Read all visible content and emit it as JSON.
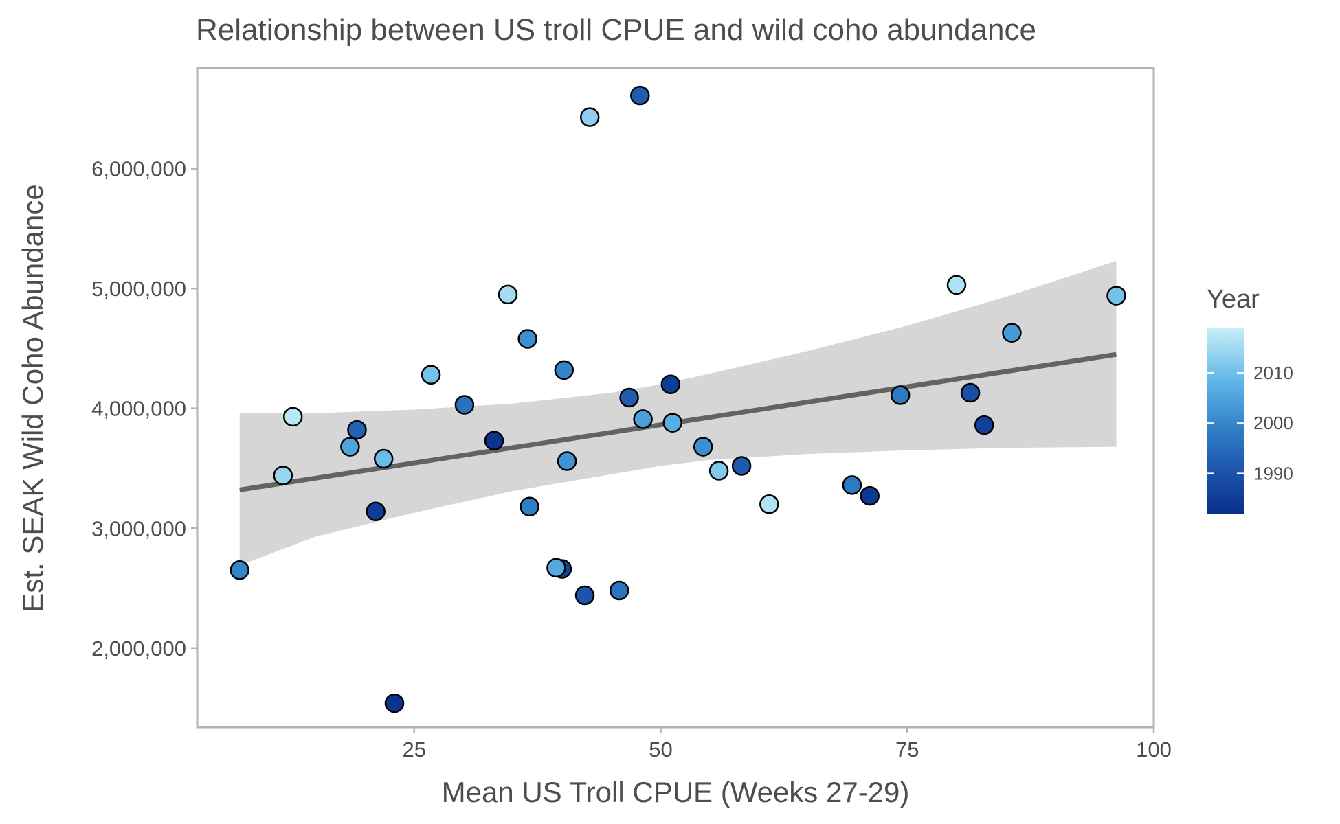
{
  "chart_data": {
    "type": "scatter",
    "title": "Relationship between US troll CPUE and wild coho abundance",
    "xlabel": "Mean US Troll CPUE (Weeks 27-29)",
    "ylabel": "Est. SEAK Wild Coho Abundance",
    "xlim": [
      3,
      100
    ],
    "ylim": [
      1340000,
      6840000
    ],
    "x_ticks": [
      25,
      50,
      75,
      100
    ],
    "x_tick_labels": [
      "25",
      "50",
      "75",
      "100"
    ],
    "y_ticks": [
      2000000,
      3000000,
      4000000,
      5000000,
      6000000
    ],
    "y_tick_labels": [
      "2,000,000",
      "3,000,000",
      "4,000,000",
      "5,000,000",
      "6,000,000"
    ],
    "grid": false,
    "legend": {
      "title": "Year",
      "position": "right",
      "type": "colorbar",
      "range": [
        1982,
        2019
      ],
      "ticks": [
        1990,
        2000,
        2010
      ],
      "tick_labels": [
        "1990",
        "2000",
        "2010"
      ],
      "color_low": "#08308a",
      "color_high": "#c6f0f8"
    },
    "colors": {
      "point_stroke": "#000000",
      "trend_line": "#636363",
      "confidence_band": "#d6d6d6",
      "panel_border": "#b3b3b3",
      "text": "#4d4d4d"
    },
    "trend": {
      "x": [
        7.3,
        96.2
      ],
      "y": [
        3320000,
        4450000
      ],
      "band_x": [
        7.3,
        15,
        25,
        35,
        45,
        50,
        55,
        65,
        75,
        85,
        96.2
      ],
      "band_lower": [
        2690000,
        2930000,
        3130000,
        3310000,
        3450000,
        3520000,
        3570000,
        3620000,
        3650000,
        3670000,
        3680000
      ],
      "band_upper": [
        3960000,
        3960000,
        3990000,
        4040000,
        4130000,
        4200000,
        4290000,
        4480000,
        4690000,
        4930000,
        5230000
      ]
    },
    "points": [
      {
        "x": 7.3,
        "y": 2650000,
        "year": 2001
      },
      {
        "x": 11.7,
        "y": 3440000,
        "year": 2015
      },
      {
        "x": 12.7,
        "y": 3930000,
        "year": 2018
      },
      {
        "x": 18.5,
        "y": 3680000,
        "year": 2007
      },
      {
        "x": 19.2,
        "y": 3820000,
        "year": 1994
      },
      {
        "x": 21.1,
        "y": 3140000,
        "year": 1985
      },
      {
        "x": 21.9,
        "y": 3580000,
        "year": 2011
      },
      {
        "x": 23.0,
        "y": 1540000,
        "year": 1983
      },
      {
        "x": 26.7,
        "y": 4280000,
        "year": 2012
      },
      {
        "x": 30.1,
        "y": 4030000,
        "year": 1997
      },
      {
        "x": 33.1,
        "y": 3730000,
        "year": 1983
      },
      {
        "x": 34.5,
        "y": 4950000,
        "year": 2016
      },
      {
        "x": 36.5,
        "y": 4580000,
        "year": 2003
      },
      {
        "x": 36.7,
        "y": 3180000,
        "year": 2000
      },
      {
        "x": 40.0,
        "y": 2660000,
        "year": 1987
      },
      {
        "x": 39.4,
        "y": 2670000,
        "year": 2008
      },
      {
        "x": 40.2,
        "y": 4320000,
        "year": 2001
      },
      {
        "x": 40.5,
        "y": 3560000,
        "year": 2004
      },
      {
        "x": 42.3,
        "y": 2440000,
        "year": 1991
      },
      {
        "x": 42.8,
        "y": 6430000,
        "year": 2014
      },
      {
        "x": 45.8,
        "y": 2480000,
        "year": 1998
      },
      {
        "x": 46.8,
        "y": 4090000,
        "year": 1993
      },
      {
        "x": 47.9,
        "y": 6610000,
        "year": 1993
      },
      {
        "x": 48.2,
        "y": 3910000,
        "year": 2006
      },
      {
        "x": 51.0,
        "y": 4200000,
        "year": 1985
      },
      {
        "x": 51.2,
        "y": 3880000,
        "year": 2009
      },
      {
        "x": 54.3,
        "y": 3680000,
        "year": 2003
      },
      {
        "x": 55.9,
        "y": 3480000,
        "year": 2013
      },
      {
        "x": 58.2,
        "y": 3520000,
        "year": 1992
      },
      {
        "x": 61.0,
        "y": 3200000,
        "year": 2017
      },
      {
        "x": 69.4,
        "y": 3360000,
        "year": 1999
      },
      {
        "x": 71.2,
        "y": 3270000,
        "year": 1984
      },
      {
        "x": 74.3,
        "y": 4110000,
        "year": 1999
      },
      {
        "x": 80.0,
        "y": 5030000,
        "year": 2017
      },
      {
        "x": 81.4,
        "y": 4130000,
        "year": 1990
      },
      {
        "x": 82.8,
        "y": 3860000,
        "year": 1986
      },
      {
        "x": 85.6,
        "y": 4630000,
        "year": 2005
      },
      {
        "x": 96.2,
        "y": 4940000,
        "year": 2012
      }
    ]
  }
}
